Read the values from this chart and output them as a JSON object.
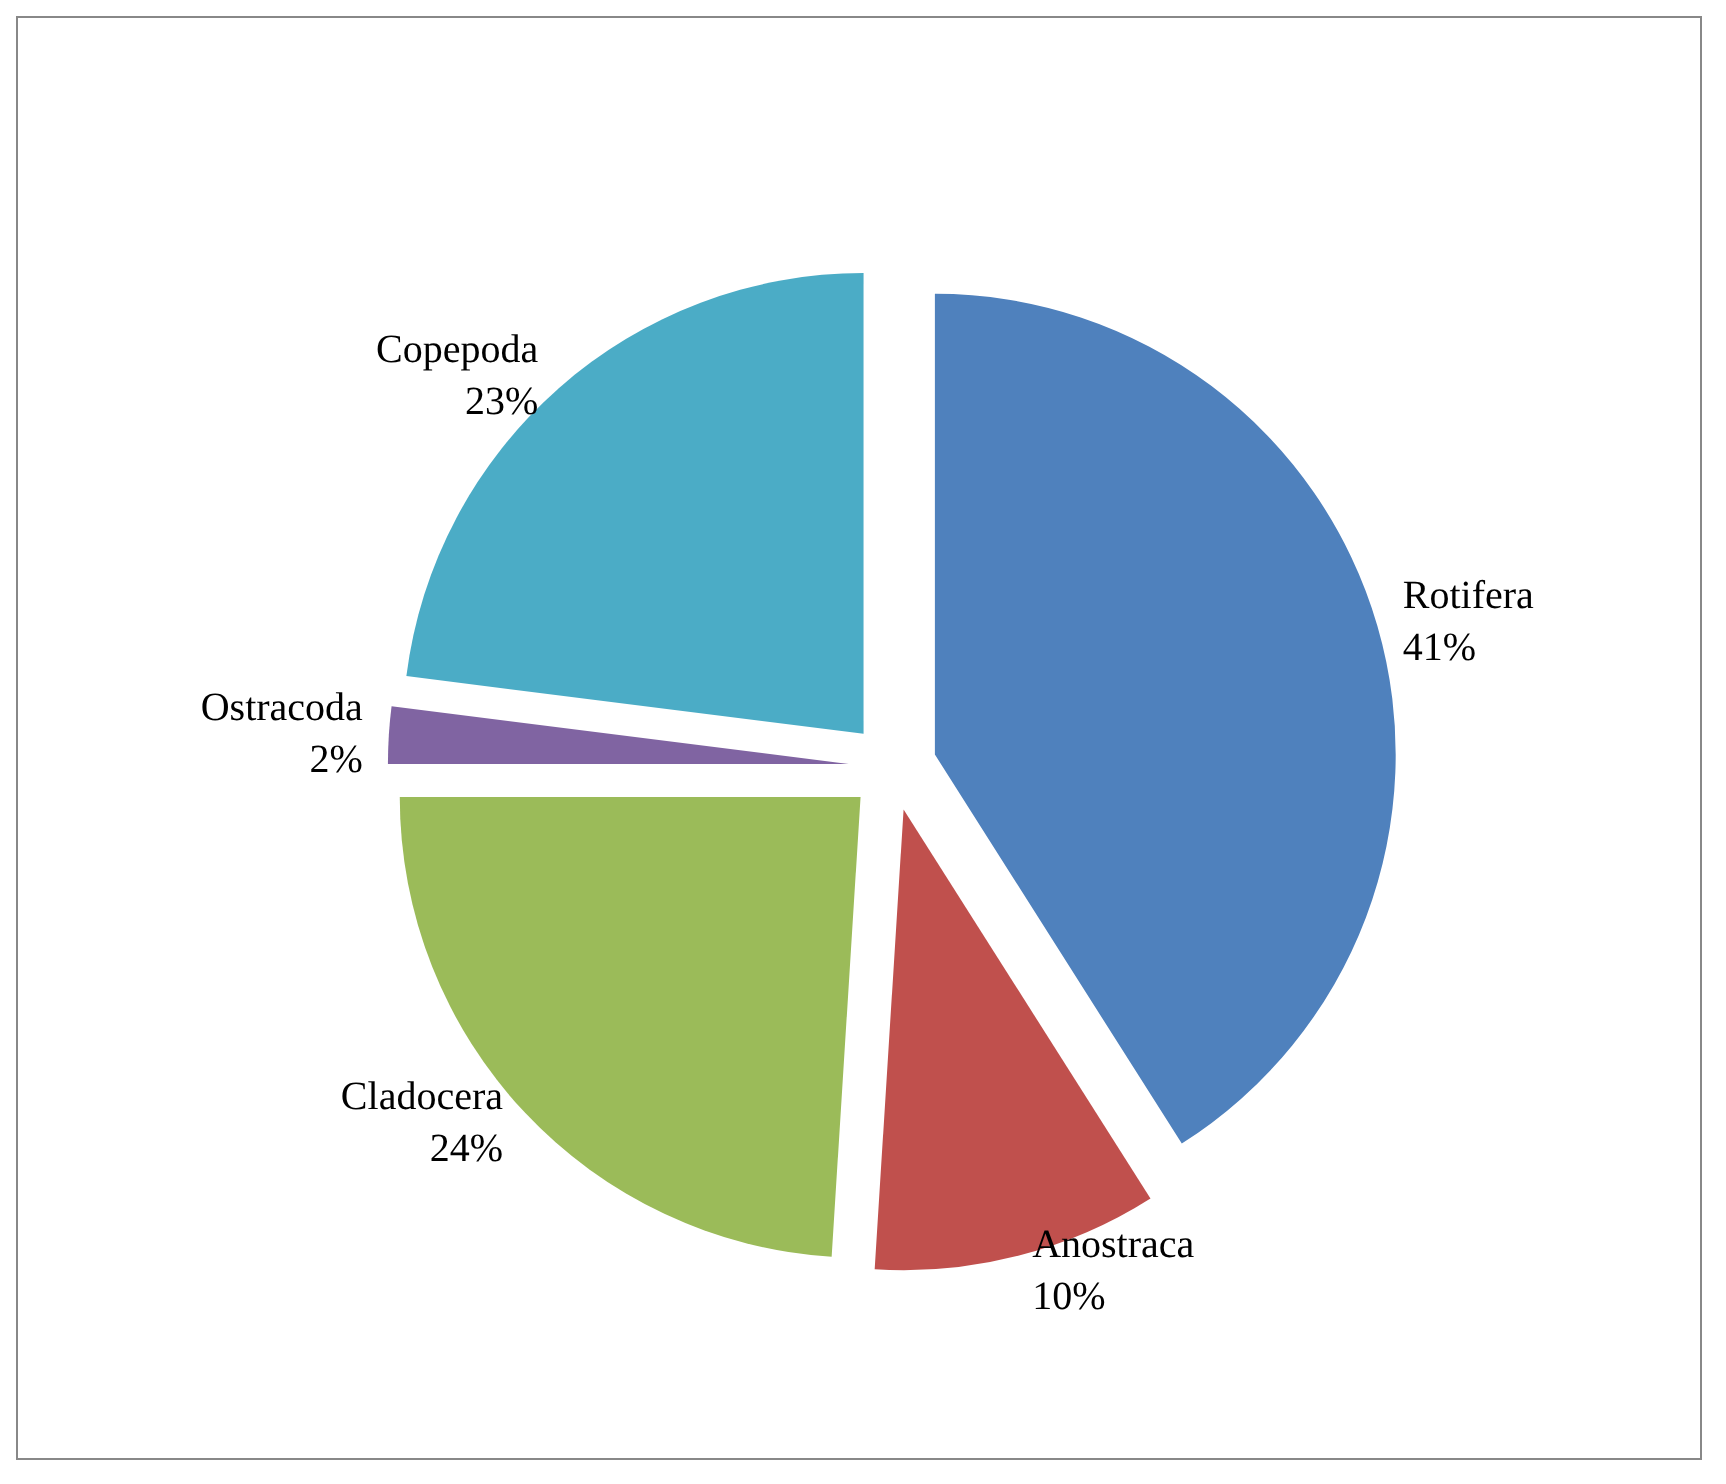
{
  "chart_data": {
    "type": "pie",
    "categories": [
      "Rotifera",
      "Anostraca",
      "Cladocera",
      "Ostracoda",
      "Copepoda"
    ],
    "values": [
      41,
      10,
      24,
      2,
      23
    ],
    "value_labels": [
      "41%",
      "10%",
      "24%",
      "2%",
      "23%"
    ],
    "colors": [
      "#4f81bd",
      "#c0504d",
      "#9bbb59",
      "#8064a2",
      "#4bacc6"
    ],
    "legend": false
  }
}
